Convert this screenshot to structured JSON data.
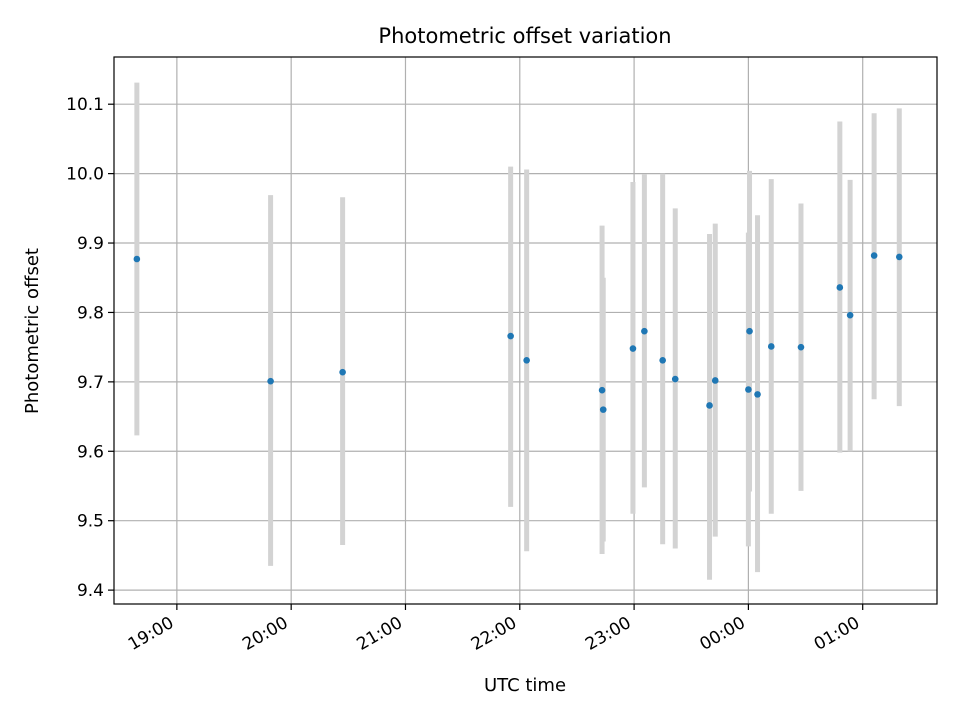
{
  "chart_data": {
    "type": "scatter",
    "title": "Photometric offset variation",
    "xlabel": "UTC time",
    "ylabel": "Photometric offset",
    "grid": true,
    "x_unit": "hours",
    "xlim": [
      18.45,
      25.65
    ],
    "ylim": [
      9.38,
      10.168
    ],
    "x_ticks": [
      {
        "value": 19,
        "label": "19:00"
      },
      {
        "value": 20,
        "label": "20:00"
      },
      {
        "value": 21,
        "label": "21:00"
      },
      {
        "value": 22,
        "label": "22:00"
      },
      {
        "value": 23,
        "label": "23:00"
      },
      {
        "value": 24,
        "label": "00:00"
      },
      {
        "value": 25,
        "label": "01:00"
      }
    ],
    "y_ticks": [
      {
        "value": 9.4,
        "label": "9.4"
      },
      {
        "value": 9.5,
        "label": "9.5"
      },
      {
        "value": 9.6,
        "label": "9.6"
      },
      {
        "value": 9.7,
        "label": "9.7"
      },
      {
        "value": 9.8,
        "label": "9.8"
      },
      {
        "value": 9.9,
        "label": "9.9"
      },
      {
        "value": 10.0,
        "label": "10.0"
      },
      {
        "value": 10.1,
        "label": "10.1"
      }
    ],
    "colors": {
      "point": "#1f77b4",
      "errorbar": "#d3d3d3",
      "grid": "#b0b0b0",
      "axes": "#000000"
    },
    "points": [
      {
        "x": 18.65,
        "y": 9.877,
        "low": 9.623,
        "high": 10.131
      },
      {
        "x": 19.82,
        "y": 9.701,
        "low": 9.435,
        "high": 9.969
      },
      {
        "x": 20.45,
        "y": 9.714,
        "low": 9.465,
        "high": 9.966
      },
      {
        "x": 21.92,
        "y": 9.766,
        "low": 9.52,
        "high": 10.01
      },
      {
        "x": 22.06,
        "y": 9.731,
        "low": 9.456,
        "high": 10.006
      },
      {
        "x": 22.72,
        "y": 9.688,
        "low": 9.452,
        "high": 9.925
      },
      {
        "x": 22.73,
        "y": 9.66,
        "low": 9.47,
        "high": 9.85
      },
      {
        "x": 22.99,
        "y": 9.748,
        "low": 9.51,
        "high": 9.988
      },
      {
        "x": 23.09,
        "y": 9.773,
        "low": 9.548,
        "high": 9.999
      },
      {
        "x": 23.25,
        "y": 9.731,
        "low": 9.466,
        "high": 10.0
      },
      {
        "x": 23.36,
        "y": 9.704,
        "low": 9.46,
        "high": 9.95
      },
      {
        "x": 23.66,
        "y": 9.666,
        "low": 9.415,
        "high": 9.913
      },
      {
        "x": 23.71,
        "y": 9.702,
        "low": 9.477,
        "high": 9.928
      },
      {
        "x": 24.01,
        "y": 9.773,
        "low": 9.542,
        "high": 10.004
      },
      {
        "x": 24.0,
        "y": 9.689,
        "low": 9.463,
        "high": 9.915
      },
      {
        "x": 24.08,
        "y": 9.682,
        "low": 9.426,
        "high": 9.94
      },
      {
        "x": 24.2,
        "y": 9.751,
        "low": 9.51,
        "high": 9.992
      },
      {
        "x": 24.46,
        "y": 9.75,
        "low": 9.543,
        "high": 9.957
      },
      {
        "x": 24.8,
        "y": 9.836,
        "low": 9.598,
        "high": 10.075
      },
      {
        "x": 24.89,
        "y": 9.796,
        "low": 9.6,
        "high": 9.991
      },
      {
        "x": 25.1,
        "y": 9.882,
        "low": 9.675,
        "high": 10.087
      },
      {
        "x": 25.32,
        "y": 9.88,
        "low": 9.665,
        "high": 10.094
      }
    ]
  }
}
